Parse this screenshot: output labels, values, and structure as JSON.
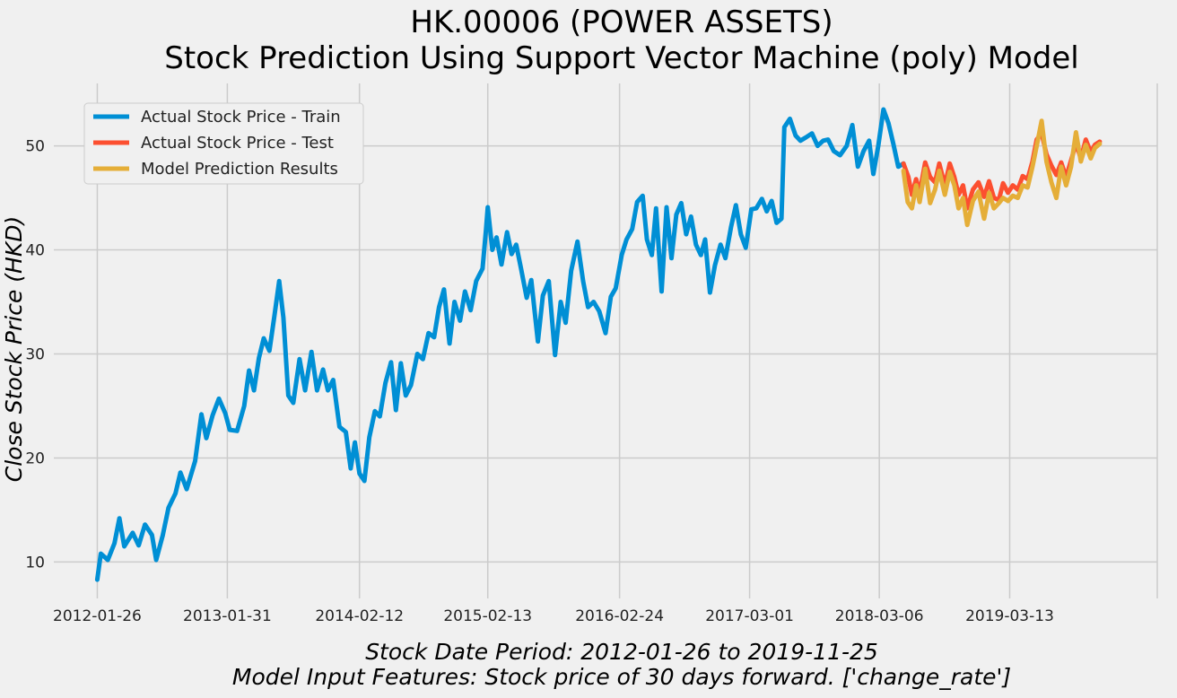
{
  "chart_data": {
    "type": "line",
    "title_line1": "HK.00006 (POWER ASSETS)",
    "title_line2": "Stock Prediction Using Support Vector Machine (poly) Model",
    "xlabel_line1": "Stock Date Period:  2012-01-26 to 2019-11-25",
    "xlabel_line2": "Model Input Features:  Stock price of 30 days forward. ['change_rate']",
    "ylabel": "Close Stock Price (HKD)",
    "x_ticks": [
      "2012-01-26",
      "2013-01-31",
      "2014-02-12",
      "2015-02-13",
      "2016-02-24",
      "2017-03-01",
      "2018-03-06",
      "2019-03-13"
    ],
    "y_ticks": [
      10,
      20,
      30,
      40,
      50
    ],
    "ylim": [
      6.5,
      56
    ],
    "xlim": [
      "2011-09-24",
      "2020-05-07"
    ],
    "grid": true,
    "legend_position": "top-left",
    "series": [
      {
        "name": "Actual Stock Price - Train",
        "color": "#008fd5",
        "points": [
          [
            "2012-01-26",
            8.3
          ],
          [
            "2012-02-05",
            10.8
          ],
          [
            "2012-02-25",
            10.2
          ],
          [
            "2012-03-15",
            11.8
          ],
          [
            "2012-03-29",
            14.2
          ],
          [
            "2012-04-12",
            11.5
          ],
          [
            "2012-05-06",
            12.8
          ],
          [
            "2012-05-23",
            11.6
          ],
          [
            "2012-06-10",
            13.6
          ],
          [
            "2012-06-30",
            12.6
          ],
          [
            "2012-07-12",
            10.2
          ],
          [
            "2012-07-31",
            12.6
          ],
          [
            "2012-08-16",
            15.2
          ],
          [
            "2012-09-05",
            16.6
          ],
          [
            "2012-09-19",
            18.6
          ],
          [
            "2012-10-07",
            17.0
          ],
          [
            "2012-10-31",
            19.7
          ],
          [
            "2012-11-18",
            24.2
          ],
          [
            "2012-12-02",
            21.9
          ],
          [
            "2012-12-20",
            24.1
          ],
          [
            "2013-01-07",
            25.7
          ],
          [
            "2013-01-25",
            24.3
          ],
          [
            "2013-02-07",
            22.7
          ],
          [
            "2013-02-28",
            22.6
          ],
          [
            "2013-03-20",
            25.0
          ],
          [
            "2013-04-03",
            28.4
          ],
          [
            "2013-04-17",
            26.5
          ],
          [
            "2013-05-01",
            29.6
          ],
          [
            "2013-05-15",
            31.5
          ],
          [
            "2013-05-31",
            30.3
          ],
          [
            "2013-06-14",
            33.6
          ],
          [
            "2013-06-28",
            37.0
          ],
          [
            "2013-07-10",
            33.5
          ],
          [
            "2013-07-24",
            26.0
          ],
          [
            "2013-08-07",
            25.3
          ],
          [
            "2013-08-25",
            29.5
          ],
          [
            "2013-09-10",
            26.5
          ],
          [
            "2013-09-28",
            30.2
          ],
          [
            "2013-10-14",
            26.5
          ],
          [
            "2013-10-31",
            28.5
          ],
          [
            "2013-11-14",
            26.5
          ],
          [
            "2013-11-29",
            27.5
          ],
          [
            "2013-12-17",
            23.0
          ],
          [
            "2014-01-04",
            22.5
          ],
          [
            "2014-01-18",
            19.0
          ],
          [
            "2014-01-30",
            21.5
          ],
          [
            "2014-02-12",
            18.5
          ],
          [
            "2014-02-26",
            17.8
          ],
          [
            "2014-03-12",
            22.0
          ],
          [
            "2014-03-28",
            24.5
          ],
          [
            "2014-04-11",
            24.0
          ],
          [
            "2014-04-27",
            27.2
          ],
          [
            "2014-05-13",
            29.2
          ],
          [
            "2014-05-27",
            24.6
          ],
          [
            "2014-06-10",
            29.1
          ],
          [
            "2014-06-24",
            26.0
          ],
          [
            "2014-07-09",
            27.0
          ],
          [
            "2014-07-27",
            30.0
          ],
          [
            "2014-08-12",
            29.5
          ],
          [
            "2014-08-28",
            32.0
          ],
          [
            "2014-09-13",
            31.6
          ],
          [
            "2014-09-27",
            34.5
          ],
          [
            "2014-10-11",
            36.2
          ],
          [
            "2014-10-27",
            31.0
          ],
          [
            "2014-11-10",
            35.0
          ],
          [
            "2014-11-26",
            33.2
          ],
          [
            "2014-12-10",
            36.0
          ],
          [
            "2014-12-26",
            34.2
          ],
          [
            "2015-01-11",
            37.0
          ],
          [
            "2015-01-29",
            38.2
          ],
          [
            "2015-02-08",
            42.0
          ],
          [
            "2015-02-13",
            44.1
          ],
          [
            "2015-02-26",
            40.0
          ],
          [
            "2015-03-10",
            41.2
          ],
          [
            "2015-03-24",
            38.6
          ],
          [
            "2015-04-09",
            41.7
          ],
          [
            "2015-04-22",
            39.6
          ],
          [
            "2015-05-05",
            40.5
          ],
          [
            "2015-05-19",
            38.2
          ],
          [
            "2015-06-04",
            35.4
          ],
          [
            "2015-06-17",
            37.1
          ],
          [
            "2015-07-06",
            31.2
          ],
          [
            "2015-07-20",
            35.6
          ],
          [
            "2015-08-06",
            37.0
          ],
          [
            "2015-08-24",
            29.9
          ],
          [
            "2015-09-09",
            35.0
          ],
          [
            "2015-09-23",
            33.0
          ],
          [
            "2015-10-09",
            38.0
          ],
          [
            "2015-10-27",
            40.8
          ],
          [
            "2015-11-12",
            37.0
          ],
          [
            "2015-11-26",
            34.5
          ],
          [
            "2015-12-12",
            35.0
          ],
          [
            "2015-12-28",
            34.1
          ],
          [
            "2016-01-15",
            32.0
          ],
          [
            "2016-01-30",
            35.5
          ],
          [
            "2016-02-13",
            36.3
          ],
          [
            "2016-03-01",
            39.5
          ],
          [
            "2016-03-15",
            41.0
          ],
          [
            "2016-03-31",
            42.0
          ],
          [
            "2016-04-14",
            44.6
          ],
          [
            "2016-04-30",
            45.2
          ],
          [
            "2016-05-12",
            41.0
          ],
          [
            "2016-05-26",
            39.5
          ],
          [
            "2016-06-07",
            44.0
          ],
          [
            "2016-06-23",
            36.0
          ],
          [
            "2016-07-07",
            44.1
          ],
          [
            "2016-07-21",
            39.2
          ],
          [
            "2016-08-04",
            43.4
          ],
          [
            "2016-08-18",
            44.5
          ],
          [
            "2016-09-01",
            41.5
          ],
          [
            "2016-09-15",
            43.2
          ],
          [
            "2016-09-29",
            40.5
          ],
          [
            "2016-10-13",
            39.5
          ],
          [
            "2016-10-25",
            41.0
          ],
          [
            "2016-11-08",
            35.9
          ],
          [
            "2016-11-22",
            38.5
          ],
          [
            "2016-12-08",
            40.5
          ],
          [
            "2016-12-22",
            39.2
          ],
          [
            "2017-01-07",
            42.2
          ],
          [
            "2017-01-21",
            44.3
          ],
          [
            "2017-02-04",
            41.5
          ],
          [
            "2017-02-18",
            40.2
          ],
          [
            "2017-03-06",
            43.9
          ],
          [
            "2017-03-20",
            44.0
          ],
          [
            "2017-04-05",
            44.9
          ],
          [
            "2017-04-19",
            43.7
          ],
          [
            "2017-05-03",
            44.7
          ],
          [
            "2017-05-17",
            42.6
          ],
          [
            "2017-05-31",
            43.0
          ],
          [
            "2017-06-08",
            51.8
          ],
          [
            "2017-06-24",
            52.6
          ],
          [
            "2017-07-10",
            51.0
          ],
          [
            "2017-07-24",
            50.5
          ],
          [
            "2017-08-08",
            50.8
          ],
          [
            "2017-08-26",
            51.2
          ],
          [
            "2017-09-11",
            50.0
          ],
          [
            "2017-09-27",
            50.5
          ],
          [
            "2017-10-11",
            50.6
          ],
          [
            "2017-10-27",
            49.5
          ],
          [
            "2017-11-14",
            49.1
          ],
          [
            "2017-12-03",
            50.0
          ],
          [
            "2017-12-19",
            52.0
          ],
          [
            "2018-01-04",
            48.0
          ],
          [
            "2018-01-20",
            49.5
          ],
          [
            "2018-02-05",
            50.5
          ],
          [
            "2018-02-17",
            47.3
          ],
          [
            "2018-03-03",
            50.0
          ],
          [
            "2018-03-18",
            53.5
          ],
          [
            "2018-04-01",
            52.2
          ],
          [
            "2018-04-15",
            50.2
          ],
          [
            "2018-04-29",
            48.0
          ],
          [
            "2018-05-14",
            48.3
          ]
        ]
      },
      {
        "name": "Actual Stock Price - Test",
        "color": "#fc4f30",
        "points": [
          [
            "2018-05-14",
            48.3
          ],
          [
            "2018-05-28",
            47.0
          ],
          [
            "2018-06-07",
            45.3
          ],
          [
            "2018-06-19",
            46.8
          ],
          [
            "2018-06-29",
            45.5
          ],
          [
            "2018-07-15",
            48.4
          ],
          [
            "2018-07-29",
            47.0
          ],
          [
            "2018-08-12",
            46.5
          ],
          [
            "2018-08-24",
            48.3
          ],
          [
            "2018-09-09",
            46.2
          ],
          [
            "2018-09-23",
            48.3
          ],
          [
            "2018-10-06",
            47.0
          ],
          [
            "2018-10-18",
            45.3
          ],
          [
            "2018-10-31",
            46.2
          ],
          [
            "2018-11-12",
            44.0
          ],
          [
            "2018-11-28",
            45.8
          ],
          [
            "2018-12-14",
            46.5
          ],
          [
            "2018-12-30",
            45.1
          ],
          [
            "2019-01-13",
            46.6
          ],
          [
            "2019-01-27",
            45.0
          ],
          [
            "2019-02-10",
            44.8
          ],
          [
            "2019-02-22",
            46.4
          ],
          [
            "2019-03-08",
            45.5
          ],
          [
            "2019-03-22",
            46.2
          ],
          [
            "2019-04-05",
            45.8
          ],
          [
            "2019-04-19",
            47.1
          ],
          [
            "2019-05-03",
            46.8
          ],
          [
            "2019-05-17",
            48.5
          ],
          [
            "2019-05-29",
            50.6
          ],
          [
            "2019-06-12",
            51.2
          ],
          [
            "2019-06-26",
            49.2
          ],
          [
            "2019-07-10",
            48.1
          ],
          [
            "2019-07-24",
            47.2
          ],
          [
            "2019-08-07",
            48.4
          ],
          [
            "2019-08-21",
            47.0
          ],
          [
            "2019-09-04",
            48.6
          ],
          [
            "2019-09-18",
            50.2
          ],
          [
            "2019-10-02",
            48.8
          ],
          [
            "2019-10-16",
            50.6
          ],
          [
            "2019-10-30",
            49.4
          ],
          [
            "2019-11-11",
            50.1
          ],
          [
            "2019-11-25",
            50.4
          ]
        ]
      },
      {
        "name": "Model Prediction Results",
        "color": "#e5ae38",
        "points": [
          [
            "2018-05-14",
            47.6
          ],
          [
            "2018-05-26",
            44.6
          ],
          [
            "2018-06-07",
            44.0
          ],
          [
            "2018-06-19",
            46.2
          ],
          [
            "2018-06-29",
            44.6
          ],
          [
            "2018-07-15",
            47.8
          ],
          [
            "2018-07-29",
            44.5
          ],
          [
            "2018-08-12",
            45.8
          ],
          [
            "2018-08-24",
            47.6
          ],
          [
            "2018-09-09",
            45.3
          ],
          [
            "2018-09-23",
            47.5
          ],
          [
            "2018-10-06",
            46.2
          ],
          [
            "2018-10-18",
            44.0
          ],
          [
            "2018-10-31",
            45.0
          ],
          [
            "2018-11-12",
            42.4
          ],
          [
            "2018-11-28",
            44.7
          ],
          [
            "2018-12-14",
            45.6
          ],
          [
            "2018-12-30",
            43.0
          ],
          [
            "2019-01-13",
            45.5
          ],
          [
            "2019-01-27",
            44.0
          ],
          [
            "2019-02-10",
            44.5
          ],
          [
            "2019-02-22",
            45.0
          ],
          [
            "2019-03-08",
            44.7
          ],
          [
            "2019-03-22",
            45.2
          ],
          [
            "2019-04-05",
            45.0
          ],
          [
            "2019-04-19",
            46.2
          ],
          [
            "2019-05-03",
            46.0
          ],
          [
            "2019-05-17",
            48.0
          ],
          [
            "2019-05-29",
            50.0
          ],
          [
            "2019-06-12",
            52.4
          ],
          [
            "2019-06-26",
            48.5
          ],
          [
            "2019-07-10",
            46.5
          ],
          [
            "2019-07-24",
            45.0
          ],
          [
            "2019-08-07",
            48.0
          ],
          [
            "2019-08-21",
            46.2
          ],
          [
            "2019-09-04",
            48.0
          ],
          [
            "2019-09-18",
            51.3
          ],
          [
            "2019-10-02",
            48.5
          ],
          [
            "2019-10-16",
            50.1
          ],
          [
            "2019-10-30",
            48.8
          ],
          [
            "2019-11-11",
            49.8
          ],
          [
            "2019-11-25",
            50.2
          ]
        ]
      }
    ]
  }
}
